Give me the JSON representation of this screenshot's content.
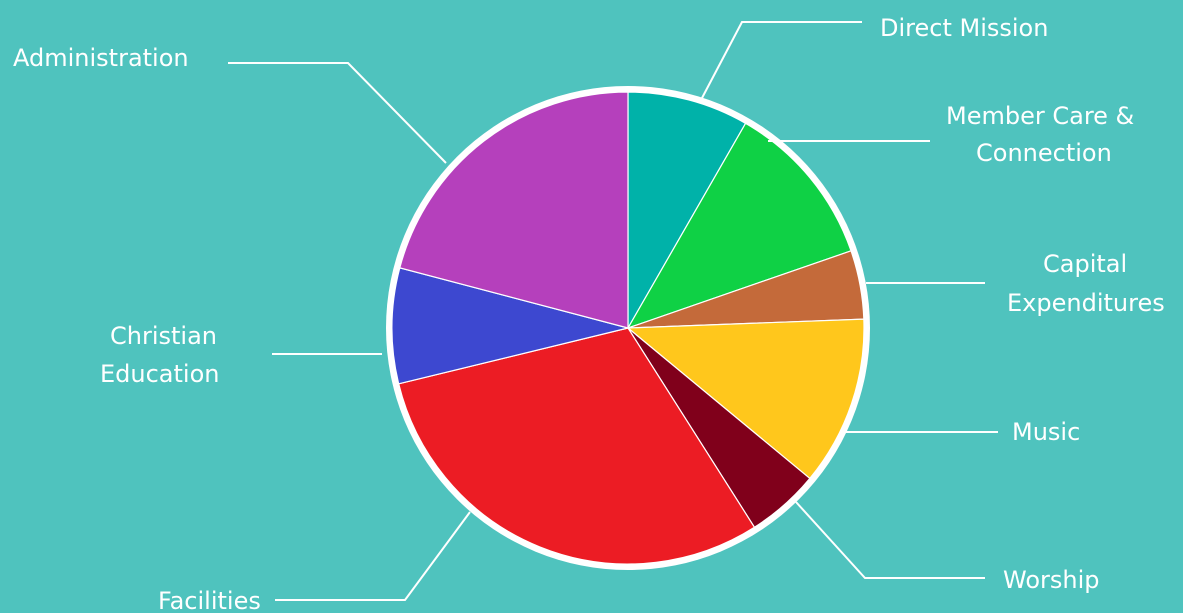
{
  "chart_data": {
    "type": "pie",
    "title": "",
    "start_angle_deg": 0,
    "direction": "clockwise",
    "background": "#4fc3be",
    "rim_color": "#ffffff",
    "slices": [
      {
        "label": "Direct Mission",
        "value": 8.3,
        "color": "#00b2a9"
      },
      {
        "label": "Member Care & Connection",
        "value": 11.4,
        "color": "#0fd145"
      },
      {
        "label": "Capital Expenditures",
        "value": 4.7,
        "color": "#c46a3a"
      },
      {
        "label": "Music",
        "value": 11.6,
        "color": "#ffc71c"
      },
      {
        "label": "Worship",
        "value": 5.0,
        "color": "#80001b"
      },
      {
        "label": "Facilities",
        "value": 30.2,
        "color": "#ec1c24"
      },
      {
        "label": "Christian Education",
        "value": 7.9,
        "color": "#3d48d0"
      },
      {
        "label": "Administration",
        "value": 20.9,
        "color": "#b540bc"
      }
    ]
  }
}
